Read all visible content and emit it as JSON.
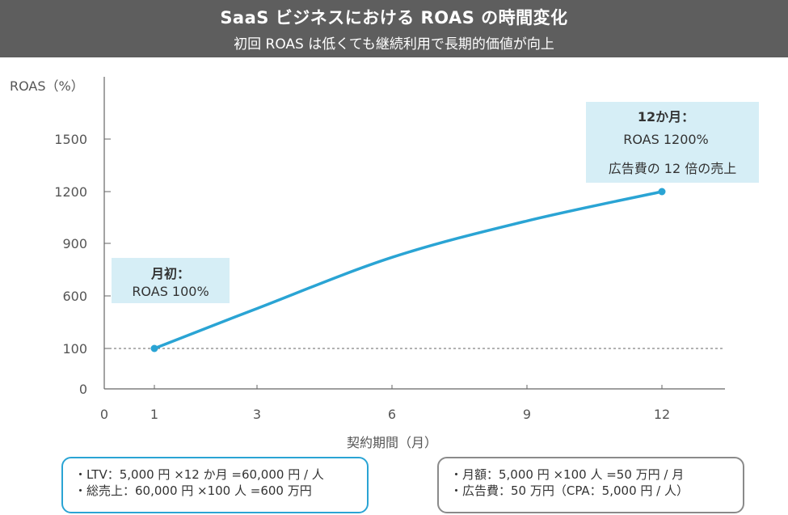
{
  "header": {
    "title": "SaaS ビジネスにおける ROAS の時間変化",
    "subtitle": "初回 ROAS は低くても継続利用で長期的価値が向上"
  },
  "chart_data": {
    "type": "line",
    "title": "SaaS ビジネスにおける ROAS の時間変化",
    "subtitle": "初回 ROAS は低くても継続利用で長期的価値が向上",
    "xlabel": "契約期間（月）",
    "ylabel": "ROAS（%）",
    "x_ticks": [
      "0",
      "1",
      "3",
      "6",
      "9",
      "12"
    ],
    "y_ticks": [
      "0",
      "100",
      "600",
      "900",
      "1200",
      "1500"
    ],
    "series": [
      {
        "x": [
          1,
          3,
          6,
          9,
          12
        ],
        "y": [
          100,
          480,
          820,
          1030,
          1200
        ]
      }
    ],
    "reference_line": {
      "y": 100,
      "style": "dashed"
    },
    "grid": false,
    "annotations": {
      "start": {
        "lines": [
          "月初：",
          "ROAS 100%"
        ]
      },
      "end": {
        "lines": [
          "12か月：",
          "ROAS 1200%",
          "広告費の 12 倍の売上"
        ]
      }
    },
    "colors": {
      "line": "#2aa4d4",
      "callout": "#d6eef6"
    }
  },
  "notes": {
    "left": [
      "・LTV：5,000 円 ×12 か月 =60,000 円 / 人",
      "・総売上：60,000 円 ×100 人 =600 万円"
    ],
    "right": [
      "・月額：5,000 円 ×100 人 =50 万円 / 月",
      "・広告費：50 万円（CPA：5,000 円 / 人）"
    ]
  }
}
